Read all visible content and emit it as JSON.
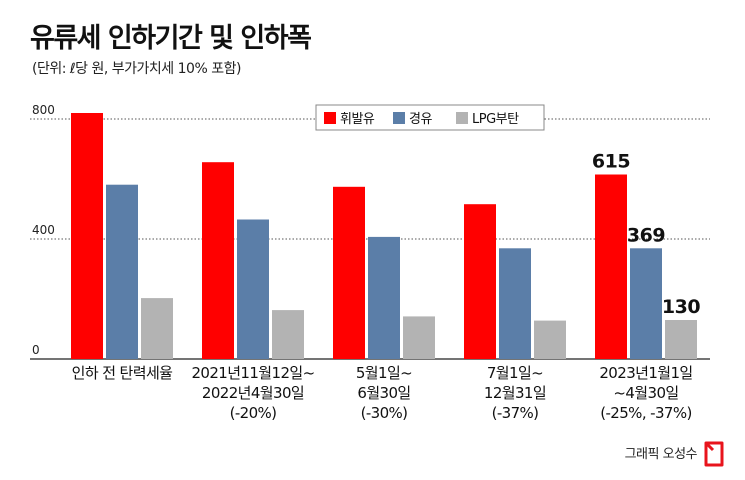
{
  "title": "유류세 인하기간 및 인하폭",
  "subtitle": "(단위: ℓ당 원, 부가가치세 10% 포함)",
  "credit": "그래픽 오성수",
  "colors": {
    "gasoline": "#ff0000",
    "diesel": "#5b7ea8",
    "lpg": "#b3b3b3"
  },
  "logo_icon": "asiae-logo-icon",
  "chart_data": {
    "type": "bar",
    "categories": [
      [
        "인하 전 탄력세율"
      ],
      [
        "2021년11월12일~",
        "2022년4월30일",
        "(-20%)"
      ],
      [
        "5월1일~",
        "6월30일",
        "(-30%)"
      ],
      [
        "7월1일~",
        "12월31일",
        "(-37%)"
      ],
      [
        "2023년1월1일",
        "~4월30일",
        "(-25%, -37%)"
      ]
    ],
    "series": [
      {
        "name": "휘발유",
        "values": [
          820,
          656,
          574,
          516,
          615
        ]
      },
      {
        "name": "경유",
        "values": [
          581,
          465,
          407,
          369,
          369
        ]
      },
      {
        "name": "LPG부탄",
        "values": [
          203,
          163,
          142,
          128,
          130
        ]
      }
    ],
    "data_labels": [
      {
        "series": 0,
        "category": 4,
        "text": "615"
      },
      {
        "series": 1,
        "category": 4,
        "text": "369"
      },
      {
        "series": 2,
        "category": 4,
        "text": "130"
      }
    ],
    "yticks": [
      0,
      400,
      800
    ],
    "ylim": [
      0,
      800
    ],
    "grid": true,
    "legend_position": "top-center"
  }
}
